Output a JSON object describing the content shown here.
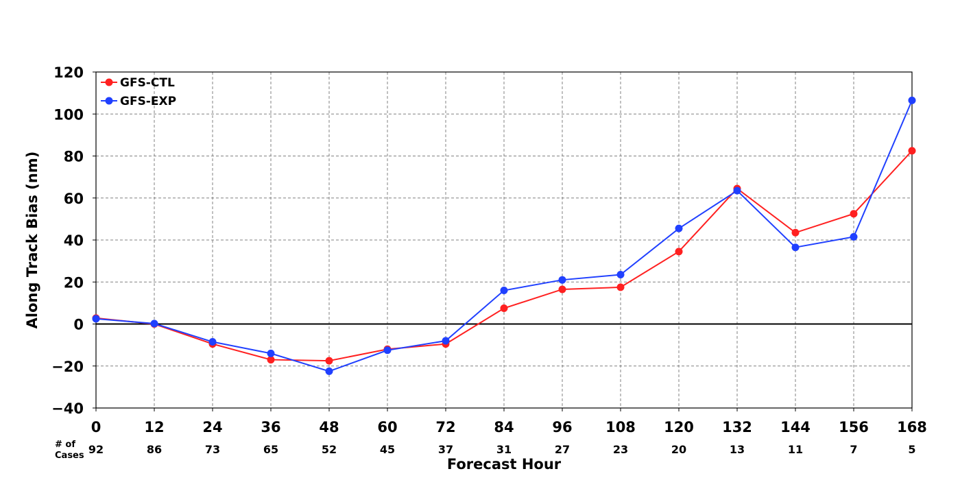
{
  "chart_data": {
    "type": "line",
    "xlabel": "Forecast Hour",
    "ylabel": "Along Track Bias (nm)",
    "x": [
      0,
      12,
      24,
      36,
      48,
      60,
      72,
      84,
      96,
      108,
      120,
      132,
      144,
      156,
      168
    ],
    "xlim": [
      0,
      168
    ],
    "ylim": [
      -40,
      120
    ],
    "yticks": [
      -40,
      -20,
      0,
      20,
      40,
      60,
      80,
      100,
      120
    ],
    "ytick_labels": [
      "−40",
      "−20",
      "0",
      "20",
      "40",
      "60",
      "80",
      "100",
      "120"
    ],
    "xtick_labels": [
      "0",
      "12",
      "24",
      "36",
      "48",
      "60",
      "72",
      "84",
      "96",
      "108",
      "120",
      "132",
      "144",
      "156",
      "168"
    ],
    "grid": true,
    "legend_position": "top-left",
    "cases_label_line1": "# of",
    "cases_label_line2": "Cases",
    "cases": [
      "92",
      "86",
      "73",
      "65",
      "52",
      "45",
      "37",
      "31",
      "27",
      "23",
      "20",
      "13",
      "11",
      "7",
      "5"
    ],
    "series": [
      {
        "name": "GFS-CTL",
        "color": "#ff2020",
        "values": [
          2.8,
          0,
          -9.5,
          -17,
          -17.5,
          -12,
          -9.5,
          7.5,
          16.5,
          17.5,
          34.5,
          64.5,
          43.5,
          52.5,
          82.5
        ]
      },
      {
        "name": "GFS-EXP",
        "color": "#2040ff",
        "values": [
          2.5,
          0.2,
          -8.5,
          -14,
          -22.5,
          -12.5,
          -8,
          16,
          21,
          23.5,
          45.5,
          63.5,
          36.5,
          41.5,
          106.5
        ]
      }
    ]
  }
}
